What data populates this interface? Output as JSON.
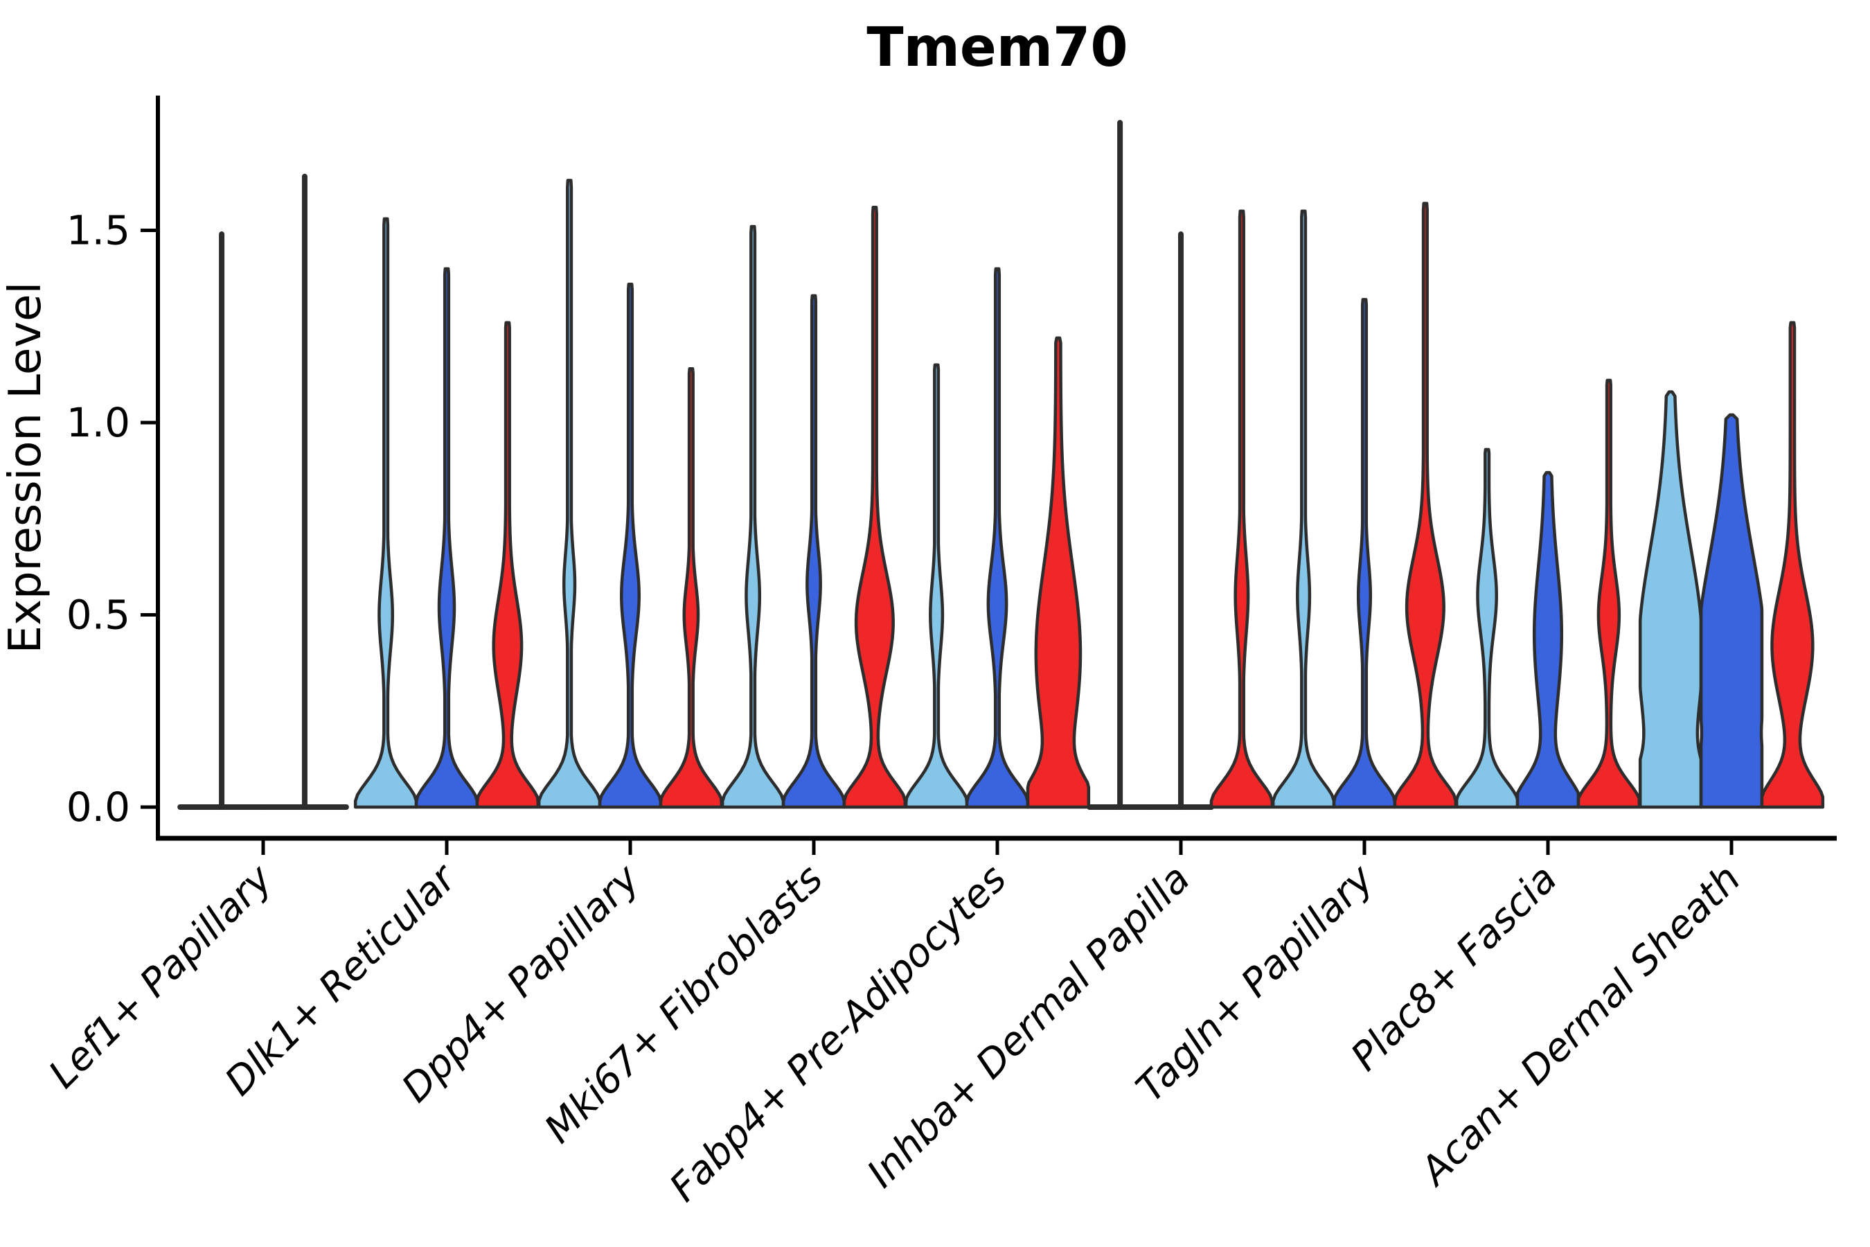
{
  "chart_data": {
    "type": "violin",
    "title": "Tmem70",
    "ylabel": "Expression Level",
    "xlabel": "",
    "ylim": [
      -0.05,
      1.85
    ],
    "ytick_labels": [
      "0.0",
      "0.5",
      "1.0",
      "1.5"
    ],
    "ytick_values": [
      0.0,
      0.5,
      1.0,
      1.5
    ],
    "grid": false,
    "legend": "none",
    "outline_color": "#2D2D2D",
    "spine_color": "#000000",
    "background_color": "#FFFFFF",
    "series": [
      {
        "key": "light-blue",
        "color": "#85C5E8"
      },
      {
        "key": "blue",
        "color": "#3A63DE"
      },
      {
        "key": "red",
        "color": "#F02728"
      }
    ],
    "categories": [
      "Lef1+ Papillary",
      "Dlk1+ Reticular",
      "Dpp4+ Papillary",
      "Mki67+ Fibroblasts",
      "Fabp4+ Pre-Adipocytes",
      "Inhba+ Dermal Papilla",
      "Tagln+ Papillary",
      "Plac8+ Fascia",
      "Acan+ Dermal Sheath"
    ],
    "groups": [
      {
        "category": "Lef1+ Papillary",
        "violins": [
          {
            "series": 0,
            "flat": true,
            "max_expression": 1.49
          },
          {
            "series": 1,
            "flat": true,
            "max_expression": 1.64
          }
        ]
      },
      {
        "category": "Dlk1+ Reticular",
        "violins": [
          {
            "series": 0,
            "flat": false,
            "max_expression": 1.53,
            "bulge_center": 0.5,
            "bulge_sigma": 0.13,
            "bulge_amp": 0.17,
            "stem_width": 0.05,
            "base_sigma": 0.09
          },
          {
            "series": 1,
            "flat": false,
            "max_expression": 1.4,
            "bulge_center": 0.52,
            "bulge_sigma": 0.14,
            "bulge_amp": 0.2,
            "stem_width": 0.05,
            "base_sigma": 0.09
          },
          {
            "series": 2,
            "flat": false,
            "max_expression": 1.26,
            "bulge_center": 0.42,
            "bulge_sigma": 0.17,
            "bulge_amp": 0.4,
            "stem_width": 0.06,
            "base_sigma": 0.09
          }
        ]
      },
      {
        "category": "Dpp4+ Papillary",
        "violins": [
          {
            "series": 0,
            "flat": false,
            "max_expression": 1.63,
            "bulge_center": 0.58,
            "bulge_sigma": 0.11,
            "bulge_amp": 0.13,
            "stem_width": 0.05,
            "base_sigma": 0.09
          },
          {
            "series": 1,
            "flat": false,
            "max_expression": 1.36,
            "bulge_center": 0.55,
            "bulge_sigma": 0.14,
            "bulge_amp": 0.24,
            "stem_width": 0.05,
            "base_sigma": 0.09
          },
          {
            "series": 2,
            "flat": false,
            "max_expression": 1.14,
            "bulge_center": 0.5,
            "bulge_sigma": 0.11,
            "bulge_amp": 0.18,
            "stem_width": 0.05,
            "base_sigma": 0.09
          }
        ]
      },
      {
        "category": "Mki67+ Fibroblasts",
        "violins": [
          {
            "series": 0,
            "flat": false,
            "max_expression": 1.51,
            "bulge_center": 0.55,
            "bulge_sigma": 0.13,
            "bulge_amp": 0.17,
            "stem_width": 0.05,
            "base_sigma": 0.09
          },
          {
            "series": 1,
            "flat": false,
            "max_expression": 1.33,
            "bulge_center": 0.58,
            "bulge_sigma": 0.12,
            "bulge_amp": 0.17,
            "stem_width": 0.05,
            "base_sigma": 0.09
          },
          {
            "series": 2,
            "flat": false,
            "max_expression": 1.56,
            "bulge_center": 0.48,
            "bulge_sigma": 0.18,
            "bulge_amp": 0.55,
            "stem_width": 0.06,
            "base_sigma": 0.09
          }
        ]
      },
      {
        "category": "Fabp4+ Pre-Adipocytes",
        "violins": [
          {
            "series": 0,
            "flat": false,
            "max_expression": 1.15,
            "bulge_center": 0.5,
            "bulge_sigma": 0.12,
            "bulge_amp": 0.15,
            "stem_width": 0.05,
            "base_sigma": 0.09
          },
          {
            "series": 1,
            "flat": false,
            "max_expression": 1.4,
            "bulge_center": 0.53,
            "bulge_sigma": 0.14,
            "bulge_amp": 0.25,
            "stem_width": 0.05,
            "base_sigma": 0.09
          },
          {
            "series": 2,
            "flat": false,
            "max_expression": 1.22,
            "bulge_center": 0.4,
            "bulge_sigma": 0.32,
            "bulge_amp": 0.65,
            "stem_width": 0.08,
            "base_sigma": 0.1
          }
        ]
      },
      {
        "category": "Inhba+ Dermal Papilla",
        "violins": [
          {
            "series": 0,
            "flat": true,
            "max_expression": 1.78
          },
          {
            "series": 1,
            "flat": true,
            "max_expression": 1.49
          },
          {
            "series": 2,
            "flat": false,
            "max_expression": 1.55,
            "bulge_center": 0.55,
            "bulge_sigma": 0.14,
            "bulge_amp": 0.16,
            "stem_width": 0.05,
            "base_sigma": 0.09
          }
        ]
      },
      {
        "category": "Tagln+ Papillary",
        "violins": [
          {
            "series": 0,
            "flat": false,
            "max_expression": 1.55,
            "bulge_center": 0.55,
            "bulge_sigma": 0.13,
            "bulge_amp": 0.15,
            "stem_width": 0.05,
            "base_sigma": 0.09
          },
          {
            "series": 1,
            "flat": false,
            "max_expression": 1.32,
            "bulge_center": 0.55,
            "bulge_sigma": 0.12,
            "bulge_amp": 0.15,
            "stem_width": 0.05,
            "base_sigma": 0.09
          },
          {
            "series": 2,
            "flat": false,
            "max_expression": 1.57,
            "bulge_center": 0.52,
            "bulge_sigma": 0.18,
            "bulge_amp": 0.55,
            "stem_width": 0.06,
            "base_sigma": 0.09
          }
        ]
      },
      {
        "category": "Plac8+ Fascia",
        "violins": [
          {
            "series": 0,
            "flat": false,
            "max_expression": 0.93,
            "bulge_center": 0.55,
            "bulge_sigma": 0.14,
            "bulge_amp": 0.25,
            "stem_width": 0.06,
            "base_sigma": 0.09
          },
          {
            "series": 1,
            "flat": false,
            "max_expression": 0.87,
            "bulge_center": 0.45,
            "bulge_sigma": 0.25,
            "bulge_amp": 0.35,
            "stem_width": 0.1,
            "base_sigma": 0.1
          },
          {
            "series": 2,
            "flat": false,
            "max_expression": 1.11,
            "bulge_center": 0.5,
            "bulge_sigma": 0.14,
            "bulge_amp": 0.28,
            "stem_width": 0.06,
            "base_sigma": 0.09
          }
        ]
      },
      {
        "category": "Acan+ Dermal Sheath",
        "violins": [
          {
            "series": 0,
            "flat": false,
            "max_expression": 1.08,
            "bulge_center": 0.4,
            "bulge_sigma": 0.38,
            "bulge_amp": 0.95,
            "stem_width": 0.1,
            "base_sigma": 0.12
          },
          {
            "series": 1,
            "flat": false,
            "max_expression": 1.02,
            "bulge_center": 0.38,
            "bulge_sigma": 0.38,
            "bulge_amp": 1.0,
            "stem_width": 0.12,
            "base_sigma": 0.12
          },
          {
            "series": 2,
            "flat": false,
            "max_expression": 1.26,
            "bulge_center": 0.42,
            "bulge_sigma": 0.2,
            "bulge_amp": 0.6,
            "stem_width": 0.07,
            "base_sigma": 0.1
          }
        ]
      }
    ]
  }
}
